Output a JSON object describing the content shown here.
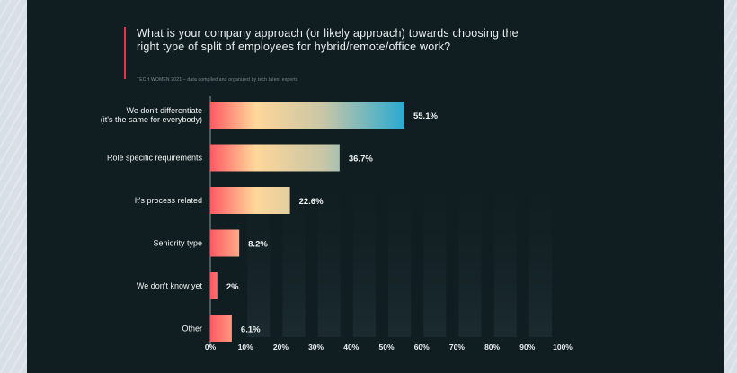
{
  "chart_data": {
    "type": "bar",
    "orientation": "horizontal",
    "title": "What is your company approach (or likely approach) towards choosing the right type of split of employees for hybrid/remote/office work?",
    "source": "TECH WOMEN 2021 – data compiled and organized by tech talent experts",
    "categories": [
      "We don't differentiate (it's the same for everybody)",
      "Role specific requirements",
      "It's process related",
      "Seniority type",
      "We don't know yet",
      "Other"
    ],
    "category_lines": [
      [
        "We don't differentiate",
        "(it's the same for everybody)"
      ],
      [
        "Role specific requirements"
      ],
      [
        "It's process related"
      ],
      [
        "Seniority type"
      ],
      [
        "We don't know yet"
      ],
      [
        "Other"
      ]
    ],
    "values": [
      55.1,
      36.7,
      22.6,
      8.2,
      2,
      6.1
    ],
    "value_labels": [
      "55.1%",
      "36.7%",
      "22.6%",
      "8.2%",
      "2%",
      "6.1%"
    ],
    "xlim": [
      0,
      100
    ],
    "xticks": [
      "0%",
      "10%",
      "20%",
      "30%",
      "40%",
      "50%",
      "60%",
      "70%",
      "80%",
      "90%",
      "100%"
    ],
    "grid": false,
    "colors": {
      "background": "#101d21",
      "bar_start": "#ff5a64",
      "bar_mid": "#ffd79a",
      "bar_end": "#16a7d6",
      "accent_rule": "#e2354c"
    }
  }
}
